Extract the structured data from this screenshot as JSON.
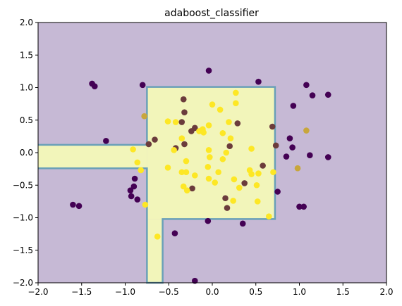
{
  "chart_data": {
    "type": "scatter",
    "title": "adaboost_classifier",
    "xlabel": "",
    "ylabel": "",
    "xlim": [
      -2.0,
      2.0
    ],
    "ylim": [
      -2.0,
      2.0
    ],
    "grid": false,
    "xticks": [
      -2.0,
      -1.5,
      -1.0,
      -0.5,
      0.0,
      0.5,
      1.0,
      1.5,
      2.0
    ],
    "xtick_labels": [
      "−2.0",
      "−1.5",
      "−1.0",
      "−0.5",
      "0.0",
      "0.5",
      "1.0",
      "1.5",
      "2.0"
    ],
    "yticks": [
      -2.0,
      -1.5,
      -1.0,
      -0.5,
      0.0,
      0.5,
      1.0,
      1.5,
      2.0
    ],
    "ytick_labels": [
      "−2.0",
      "−1.5",
      "−1.0",
      "−0.5",
      "0.0",
      "0.5",
      "1.0",
      "1.5",
      "2.0"
    ],
    "colors": {
      "background_region": "#c6b9d5",
      "positive_region": "#f2f5ba",
      "boundary": "#6aa0b8",
      "class_0": "#440154",
      "class_1": "#fde725",
      "mixed": "#6b3c3c",
      "mixed_light": "#c8a63c"
    },
    "positive_regions": [
      {
        "x0": -2.0,
        "x1": -0.75,
        "y0": -0.24,
        "y1": 0.12
      },
      {
        "x0": -0.75,
        "x1": 0.72,
        "y0": -1.02,
        "y1": 1.01
      },
      {
        "x0": -0.75,
        "x1": -0.57,
        "y0": -2.0,
        "y1": -1.02
      }
    ],
    "points": [
      {
        "x": -0.04,
        "y": 1.26,
        "c": "class_0"
      },
      {
        "x": 0.53,
        "y": 1.09,
        "c": "class_0"
      },
      {
        "x": -1.38,
        "y": 1.06,
        "c": "class_0"
      },
      {
        "x": -1.35,
        "y": 1.02,
        "c": "class_0"
      },
      {
        "x": -0.8,
        "y": 1.04,
        "c": "class_0"
      },
      {
        "x": 1.08,
        "y": 1.04,
        "c": "class_0"
      },
      {
        "x": 1.15,
        "y": 0.88,
        "c": "class_0"
      },
      {
        "x": 1.33,
        "y": 0.89,
        "c": "class_0"
      },
      {
        "x": 0.93,
        "y": 0.72,
        "c": "class_0"
      },
      {
        "x": -1.22,
        "y": 0.18,
        "c": "class_0"
      },
      {
        "x": 0.89,
        "y": 0.22,
        "c": "class_0"
      },
      {
        "x": 0.92,
        "y": 0.08,
        "c": "class_0"
      },
      {
        "x": 0.85,
        "y": -0.06,
        "c": "class_0"
      },
      {
        "x": 1.12,
        "y": -0.04,
        "c": "class_0"
      },
      {
        "x": 1.33,
        "y": -0.07,
        "c": "class_0"
      },
      {
        "x": -0.89,
        "y": -0.4,
        "c": "class_0"
      },
      {
        "x": -0.9,
        "y": -0.52,
        "c": "class_0"
      },
      {
        "x": -0.94,
        "y": -0.58,
        "c": "class_0"
      },
      {
        "x": -0.93,
        "y": -0.67,
        "c": "class_0"
      },
      {
        "x": -0.86,
        "y": -0.72,
        "c": "class_0"
      },
      {
        "x": 0.75,
        "y": -0.6,
        "c": "class_0"
      },
      {
        "x": -1.6,
        "y": -0.8,
        "c": "class_0"
      },
      {
        "x": -1.53,
        "y": -0.82,
        "c": "class_0"
      },
      {
        "x": 1.0,
        "y": -0.83,
        "c": "class_0"
      },
      {
        "x": 1.05,
        "y": -0.83,
        "c": "class_0"
      },
      {
        "x": -0.05,
        "y": -1.05,
        "c": "class_0"
      },
      {
        "x": 0.35,
        "y": -1.09,
        "c": "class_0"
      },
      {
        "x": -0.43,
        "y": -1.24,
        "c": "class_0"
      },
      {
        "x": -0.2,
        "y": -1.97,
        "c": "class_0"
      },
      {
        "x": -0.33,
        "y": 0.82,
        "c": "mixed"
      },
      {
        "x": -0.32,
        "y": 0.62,
        "c": "mixed"
      },
      {
        "x": -0.35,
        "y": 0.47,
        "c": "mixed"
      },
      {
        "x": -0.24,
        "y": 0.33,
        "c": "mixed"
      },
      {
        "x": -0.2,
        "y": 0.38,
        "c": "mixed"
      },
      {
        "x": 0.29,
        "y": 0.45,
        "c": "mixed"
      },
      {
        "x": 0.69,
        "y": 0.4,
        "c": "mixed"
      },
      {
        "x": 0.73,
        "y": 0.11,
        "c": "mixed"
      },
      {
        "x": -0.66,
        "y": 0.2,
        "c": "mixed"
      },
      {
        "x": -0.73,
        "y": 0.13,
        "c": "mixed"
      },
      {
        "x": -0.42,
        "y": 0.07,
        "c": "mixed"
      },
      {
        "x": -0.32,
        "y": 0.13,
        "c": "mixed"
      },
      {
        "x": 0.2,
        "y": 0.1,
        "c": "mixed"
      },
      {
        "x": 0.58,
        "y": -0.2,
        "c": "mixed"
      },
      {
        "x": 0.37,
        "y": -0.47,
        "c": "mixed"
      },
      {
        "x": 0.15,
        "y": -0.7,
        "c": "mixed"
      },
      {
        "x": 0.17,
        "y": -0.85,
        "c": "mixed"
      },
      {
        "x": -0.23,
        "y": -0.55,
        "c": "mixed"
      },
      {
        "x": -0.78,
        "y": 0.56,
        "c": "mixed_light"
      },
      {
        "x": 1.08,
        "y": 0.34,
        "c": "mixed_light"
      },
      {
        "x": 0.98,
        "y": -0.24,
        "c": "mixed_light"
      },
      {
        "x": 0.27,
        "y": 0.92,
        "c": "class_1"
      },
      {
        "x": 0.27,
        "y": 0.76,
        "c": "class_1"
      },
      {
        "x": 0.09,
        "y": 0.66,
        "c": "class_1"
      },
      {
        "x": 0.0,
        "y": 0.74,
        "c": "class_1"
      },
      {
        "x": 0.19,
        "y": 0.47,
        "c": "class_1"
      },
      {
        "x": -0.51,
        "y": 0.48,
        "c": "class_1"
      },
      {
        "x": -0.42,
        "y": 0.47,
        "c": "class_1"
      },
      {
        "x": -0.04,
        "y": 0.42,
        "c": "class_1"
      },
      {
        "x": -0.11,
        "y": 0.36,
        "c": "class_1"
      },
      {
        "x": -0.15,
        "y": 0.33,
        "c": "class_1"
      },
      {
        "x": -0.1,
        "y": 0.31,
        "c": "class_1"
      },
      {
        "x": 0.12,
        "y": 0.3,
        "c": "class_1"
      },
      {
        "x": -0.35,
        "y": 0.22,
        "c": "class_1"
      },
      {
        "x": 0.21,
        "y": 0.22,
        "c": "class_1"
      },
      {
        "x": -0.44,
        "y": 0.04,
        "c": "class_1"
      },
      {
        "x": -0.04,
        "y": 0.04,
        "c": "class_1"
      },
      {
        "x": 0.45,
        "y": 0.06,
        "c": "class_1"
      },
      {
        "x": -0.91,
        "y": 0.05,
        "c": "class_1"
      },
      {
        "x": 0.16,
        "y": 0.0,
        "c": "class_1"
      },
      {
        "x": -0.03,
        "y": -0.07,
        "c": "class_1"
      },
      {
        "x": 0.12,
        "y": -0.1,
        "c": "class_1"
      },
      {
        "x": -0.86,
        "y": -0.15,
        "c": "class_1"
      },
      {
        "x": -0.3,
        "y": -0.13,
        "c": "class_1"
      },
      {
        "x": -0.51,
        "y": -0.23,
        "c": "class_1"
      },
      {
        "x": -0.35,
        "y": -0.3,
        "c": "class_1"
      },
      {
        "x": -0.3,
        "y": -0.3,
        "c": "class_1"
      },
      {
        "x": -0.05,
        "y": -0.22,
        "c": "class_1"
      },
      {
        "x": 0.07,
        "y": -0.3,
        "c": "class_1"
      },
      {
        "x": 0.43,
        "y": -0.27,
        "c": "class_1"
      },
      {
        "x": 0.45,
        "y": -0.33,
        "c": "class_1"
      },
      {
        "x": 0.53,
        "y": -0.32,
        "c": "class_1"
      },
      {
        "x": 0.7,
        "y": -0.3,
        "c": "class_1"
      },
      {
        "x": -0.82,
        "y": -0.27,
        "c": "class_1"
      },
      {
        "x": -0.2,
        "y": -0.35,
        "c": "class_1"
      },
      {
        "x": -0.04,
        "y": -0.4,
        "c": "class_1"
      },
      {
        "x": 0.03,
        "y": -0.46,
        "c": "class_1"
      },
      {
        "x": 0.25,
        "y": -0.41,
        "c": "class_1"
      },
      {
        "x": -0.33,
        "y": -0.52,
        "c": "class_1"
      },
      {
        "x": -0.29,
        "y": -0.58,
        "c": "class_1"
      },
      {
        "x": 0.31,
        "y": -0.54,
        "c": "class_1"
      },
      {
        "x": 0.51,
        "y": -0.5,
        "c": "class_1"
      },
      {
        "x": 0.24,
        "y": -0.74,
        "c": "class_1"
      },
      {
        "x": 0.52,
        "y": -0.75,
        "c": "class_1"
      },
      {
        "x": -0.77,
        "y": -0.8,
        "c": "class_1"
      },
      {
        "x": 0.65,
        "y": -0.98,
        "c": "class_1"
      },
      {
        "x": -0.63,
        "y": -1.29,
        "c": "class_1"
      }
    ]
  }
}
